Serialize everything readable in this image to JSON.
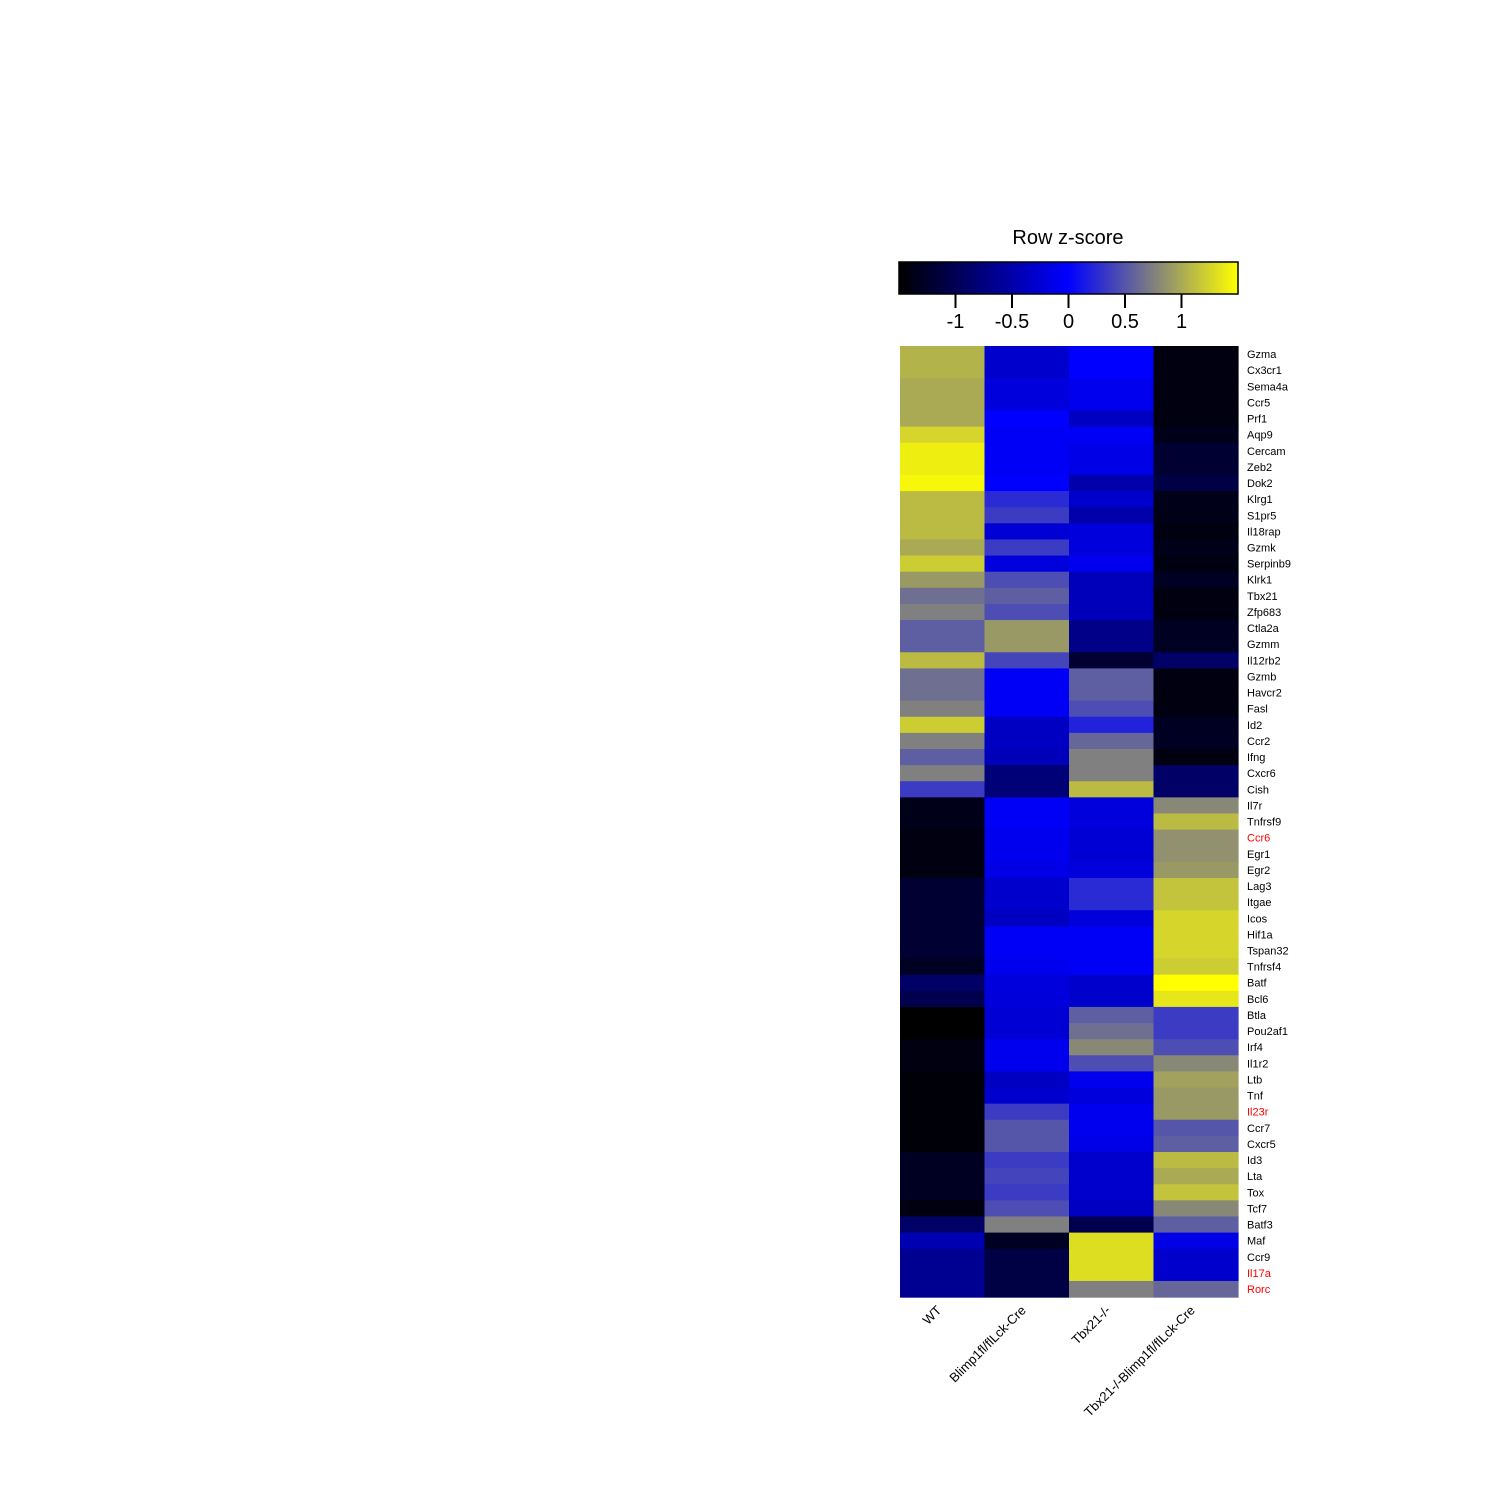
{
  "chart_data": {
    "type": "heatmap",
    "color_key": {
      "title": "Row z-score",
      "ticks": [
        -1,
        -0.5,
        0,
        0.5,
        1
      ],
      "tick_labels": [
        "-1",
        "-0.5",
        "0",
        "0.5",
        "1"
      ],
      "range": [
        -1.5,
        1.5
      ],
      "colors": [
        "#000000",
        "#0000ff",
        "#ffff00"
      ],
      "middle_color_at": 0
    },
    "columns": [
      "WT",
      "Blimp1fl/flLck-Cre",
      "Tbx21-/-",
      "Tbx21-/-Blimp1fl/flLck-Cre"
    ],
    "rows": [
      "Gzma",
      "Cx3cr1",
      "Sema4a",
      "Ccr5",
      "Prf1",
      "Aqp9",
      "Cercam",
      "Zeb2",
      "Dok2",
      "Klrg1",
      "S1pr5",
      "Il18rap",
      "Gzmk",
      "Serpinb9",
      "Klrk1",
      "Tbx21",
      "Zfp683",
      "Ctla2a",
      "Gzmm",
      "Il12rb2",
      "Gzmb",
      "Havcr2",
      "Fasl",
      "Id2",
      "Ccr2",
      "Ifng",
      "Cxcr6",
      "Cish",
      "Il7r",
      "Tnfrsf9",
      "Ccr6",
      "Egr1",
      "Egr2",
      "Lag3",
      "Itgae",
      "Icos",
      "Hif1a",
      "Tspan32",
      "Tnfrsf4",
      "Batf",
      "Bcl6",
      "Btla",
      "Pou2af1",
      "Irf4",
      "Il1r2",
      "Ltb",
      "Tnf",
      "Il23r",
      "Ccr7",
      "Cxcr5",
      "Id3",
      "Lta",
      "Tox",
      "Tcf7",
      "Batf3",
      "Maf",
      "Ccr9",
      "Il17a",
      "Rorc"
    ],
    "highlighted_rows": [
      "Ccr6",
      "Il23r",
      "Il17a",
      "Rorc"
    ],
    "highlight_color": "#ff0000",
    "values": [
      [
        1.05,
        -0.3,
        0.0,
        -1.4
      ],
      [
        1.05,
        -0.3,
        0.0,
        -1.4
      ],
      [
        1.0,
        -0.2,
        -0.1,
        -1.4
      ],
      [
        1.0,
        -0.2,
        -0.1,
        -1.4
      ],
      [
        1.0,
        0.0,
        -0.35,
        -1.4
      ],
      [
        1.25,
        -0.05,
        -0.05,
        -1.35
      ],
      [
        1.4,
        -0.05,
        -0.15,
        -1.2
      ],
      [
        1.4,
        -0.05,
        -0.15,
        -1.2
      ],
      [
        1.45,
        0.0,
        -0.5,
        -1.1
      ],
      [
        1.1,
        0.25,
        -0.3,
        -1.35
      ],
      [
        1.1,
        0.35,
        -0.5,
        -1.35
      ],
      [
        1.1,
        -0.25,
        -0.2,
        -1.4
      ],
      [
        1.0,
        0.35,
        -0.2,
        -1.35
      ],
      [
        1.2,
        -0.2,
        -0.1,
        -1.4
      ],
      [
        0.9,
        0.45,
        -0.4,
        -1.3
      ],
      [
        0.65,
        0.55,
        -0.4,
        -1.4
      ],
      [
        0.75,
        0.45,
        -0.4,
        -1.4
      ],
      [
        0.55,
        0.9,
        -0.7,
        -1.3
      ],
      [
        0.55,
        0.9,
        -0.7,
        -1.3
      ],
      [
        1.1,
        0.4,
        -1.2,
        -0.9
      ],
      [
        0.65,
        -0.05,
        0.55,
        -1.4
      ],
      [
        0.65,
        -0.05,
        0.55,
        -1.4
      ],
      [
        0.75,
        -0.05,
        0.45,
        -1.4
      ],
      [
        1.2,
        -0.35,
        0.2,
        -1.3
      ],
      [
        0.75,
        -0.35,
        0.6,
        -1.3
      ],
      [
        0.55,
        -0.4,
        0.75,
        -1.4
      ],
      [
        0.75,
        -0.8,
        0.75,
        -0.9
      ],
      [
        0.35,
        -0.8,
        1.1,
        -0.9
      ],
      [
        -1.35,
        -0.05,
        -0.2,
        0.8
      ],
      [
        -1.35,
        -0.05,
        -0.2,
        1.1
      ],
      [
        -1.4,
        -0.1,
        -0.25,
        0.85
      ],
      [
        -1.4,
        -0.1,
        -0.25,
        0.85
      ],
      [
        -1.4,
        -0.15,
        -0.2,
        0.9
      ],
      [
        -1.2,
        -0.3,
        0.25,
        1.15
      ],
      [
        -1.2,
        -0.3,
        0.25,
        1.15
      ],
      [
        -1.2,
        -0.35,
        -0.2,
        1.25
      ],
      [
        -1.2,
        -0.05,
        -0.05,
        1.25
      ],
      [
        -1.2,
        -0.05,
        -0.05,
        1.25
      ],
      [
        -1.3,
        -0.1,
        -0.05,
        1.2
      ],
      [
        -0.9,
        -0.2,
        -0.3,
        1.55
      ],
      [
        -1.05,
        -0.2,
        -0.3,
        1.35
      ],
      [
        -1.5,
        -0.25,
        0.55,
        0.35
      ],
      [
        -1.5,
        -0.25,
        0.65,
        0.35
      ],
      [
        -1.4,
        -0.1,
        0.8,
        0.45
      ],
      [
        -1.4,
        -0.1,
        0.45,
        0.8
      ],
      [
        -1.45,
        -0.35,
        -0.1,
        0.95
      ],
      [
        -1.45,
        -0.3,
        -0.2,
        0.9
      ],
      [
        -1.45,
        0.35,
        -0.1,
        0.9
      ],
      [
        -1.45,
        0.5,
        -0.1,
        0.5
      ],
      [
        -1.45,
        0.5,
        -0.15,
        0.55
      ],
      [
        -1.3,
        0.35,
        -0.3,
        1.1
      ],
      [
        -1.3,
        0.4,
        -0.3,
        1.0
      ],
      [
        -1.3,
        0.35,
        -0.3,
        1.15
      ],
      [
        -1.4,
        0.45,
        -0.35,
        0.8
      ],
      [
        -0.9,
        0.75,
        -1.05,
        0.55
      ],
      [
        -0.45,
        -1.3,
        1.3,
        -0.15
      ],
      [
        -0.65,
        -1.1,
        1.3,
        -0.3
      ],
      [
        -0.65,
        -1.1,
        1.3,
        -0.3
      ],
      [
        -0.65,
        -1.1,
        0.75,
        0.6
      ]
    ]
  }
}
